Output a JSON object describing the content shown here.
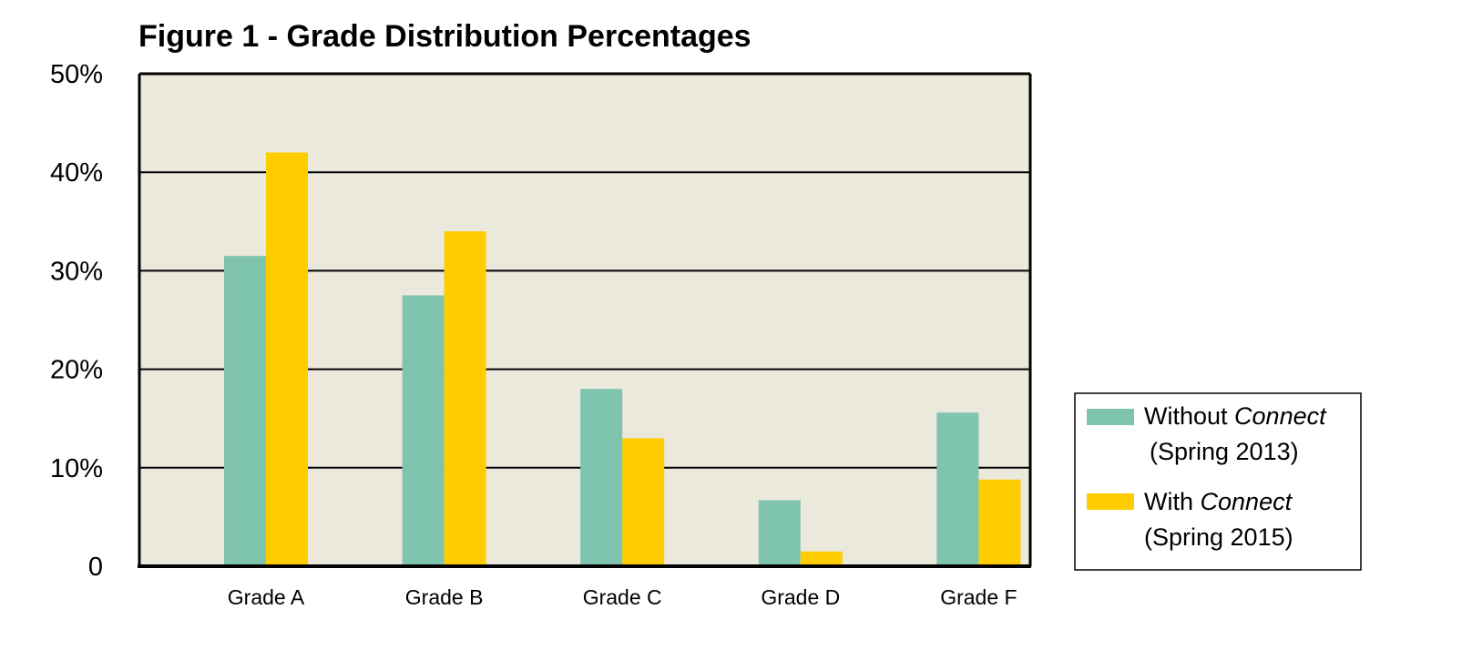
{
  "chart_data": {
    "type": "bar",
    "title": "Figure 1 - Grade Distribution Percentages",
    "categories": [
      "Grade A",
      "Grade B",
      "Grade C",
      "Grade D",
      "Grade F"
    ],
    "y_tick_labels": [
      "0",
      "10%",
      "20%",
      "30%",
      "40%",
      "50%"
    ],
    "y_tick_values": [
      0,
      10,
      20,
      30,
      40,
      50
    ],
    "ylim": [
      0,
      50
    ],
    "grid": true,
    "legend_position": "right",
    "series": [
      {
        "name": "Without Connect (Spring 2013)",
        "name_parts": {
          "prefix": "Without ",
          "emphasis": "Connect",
          "suffix": "(Spring 2013)"
        },
        "color": "#7fc4af",
        "values": [
          31.5,
          27.5,
          18,
          6.7,
          15.6
        ]
      },
      {
        "name": "With Connect (Spring 2015)",
        "name_parts": {
          "prefix": "With ",
          "emphasis": "Connect",
          "suffix": "(Spring 2015)"
        },
        "color": "#ffcc00",
        "values": [
          42,
          34,
          13,
          1.5,
          8.8
        ]
      }
    ],
    "plot_background": "#ebe8dc"
  }
}
